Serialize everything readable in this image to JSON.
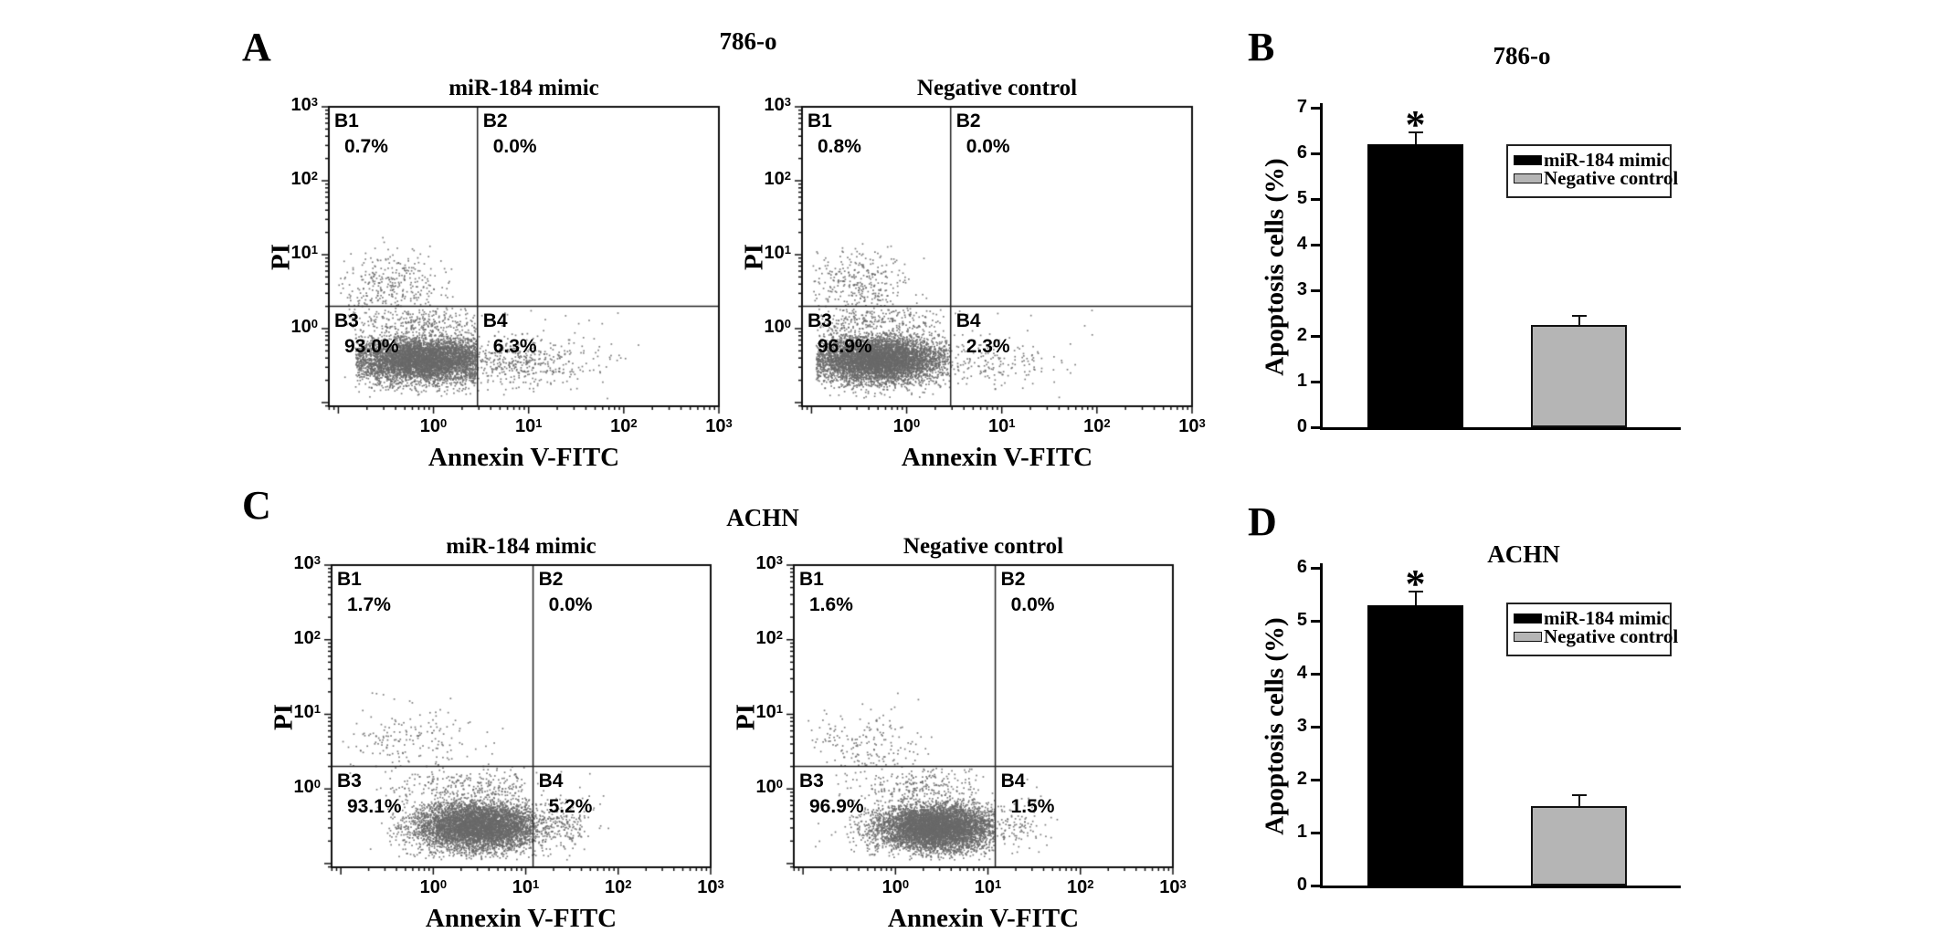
{
  "figure": {
    "panel_labels": {
      "a": "A",
      "b": "B",
      "c": "C",
      "d": "D"
    },
    "group_titles": {
      "a": "786-o",
      "c": "ACHN"
    }
  },
  "chart_data": [
    {
      "type": "scatter",
      "panel": "A",
      "cell_line": "786-o",
      "condition": "miR-184 mimic",
      "xlabel": "Annexin V-FITC",
      "ylabel": "PI",
      "xlim_log": [
        -1.1,
        3.0
      ],
      "ylim_log": [
        -1.05,
        3.0
      ],
      "x_decades": [
        0,
        1,
        2,
        3
      ],
      "y_decades": [
        0,
        1,
        2,
        3
      ],
      "gate": {
        "x": 2.9,
        "y": 2.0
      },
      "dot_color": "#696969",
      "quadrants": [
        {
          "name": "B1",
          "pct": "0.7%"
        },
        {
          "name": "B2",
          "pct": "0.0%"
        },
        {
          "name": "B3",
          "pct": "93.0%"
        },
        {
          "name": "B4",
          "pct": "6.3%"
        }
      ],
      "clusters": [
        [
          5200,
          -0.1,
          0.42,
          -0.42,
          0.16,
          -0.82,
          0.455,
          -0.93,
          -0.04
        ],
        [
          260,
          -0.15,
          0.45,
          0.08,
          0.14,
          -0.9,
          0.44,
          -0.04,
          0.28
        ],
        [
          300,
          -0.45,
          0.3,
          0.58,
          0.24,
          -1.0,
          0.35,
          0.3,
          1.25
        ],
        [
          400,
          0.8,
          0.42,
          -0.45,
          0.17,
          0.465,
          2.45,
          -0.9,
          -0.05
        ],
        [
          90,
          0.5,
          0.9,
          -0.2,
          0.5,
          -0.95,
          2.2,
          -0.95,
          0.25
        ]
      ]
    },
    {
      "type": "scatter",
      "panel": "A",
      "cell_line": "786-o",
      "condition": "Negative control",
      "xlabel": "Annexin V-FITC",
      "ylabel": "PI",
      "xlim_log": [
        -1.1,
        3.0
      ],
      "ylim_log": [
        -1.05,
        3.0
      ],
      "x_decades": [
        0,
        1,
        2,
        3
      ],
      "y_decades": [
        0,
        1,
        2,
        3
      ],
      "gate": {
        "x": 2.9,
        "y": 2.0
      },
      "dot_color": "#696969",
      "quadrants": [
        {
          "name": "B1",
          "pct": "0.8%"
        },
        {
          "name": "B2",
          "pct": "0.0%"
        },
        {
          "name": "B3",
          "pct": "96.9%"
        },
        {
          "name": "B4",
          "pct": "2.3%"
        }
      ],
      "clusters": [
        [
          5600,
          -0.3,
          0.36,
          -0.42,
          0.16,
          -0.95,
          0.455,
          -0.93,
          -0.04
        ],
        [
          260,
          -0.35,
          0.4,
          0.08,
          0.14,
          -0.95,
          0.44,
          -0.04,
          0.28
        ],
        [
          300,
          -0.5,
          0.3,
          0.58,
          0.24,
          -1.0,
          0.3,
          0.3,
          1.25
        ],
        [
          150,
          0.85,
          0.4,
          -0.45,
          0.17,
          0.465,
          2.1,
          -0.9,
          -0.05
        ],
        [
          80,
          0.3,
          0.9,
          -0.2,
          0.5,
          -0.95,
          2.0,
          -0.95,
          0.25
        ]
      ]
    },
    {
      "type": "scatter",
      "panel": "C",
      "cell_line": "ACHN",
      "condition": "miR-184 mimic",
      "xlabel": "Annexin V-FITC",
      "ylabel": "PI",
      "xlim_log": [
        -1.1,
        3.0
      ],
      "ylim_log": [
        -1.05,
        3.0
      ],
      "x_decades": [
        0,
        1,
        2,
        3
      ],
      "y_decades": [
        0,
        1,
        2,
        3
      ],
      "gate": {
        "x": 12.0,
        "y": 2.0
      },
      "dot_color": "#696969",
      "quadrants": [
        {
          "name": "B1",
          "pct": "1.7%"
        },
        {
          "name": "B2",
          "pct": "0.0%"
        },
        {
          "name": "B3",
          "pct": "93.1%"
        },
        {
          "name": "B4",
          "pct": "5.2%"
        }
      ],
      "clusters": [
        [
          5200,
          0.5,
          0.36,
          -0.5,
          0.17,
          -0.5,
          1.075,
          -0.95,
          -0.08
        ],
        [
          240,
          0.35,
          0.45,
          0.02,
          0.15,
          -0.6,
          1.0,
          -0.08,
          0.3
        ],
        [
          170,
          -0.3,
          0.38,
          0.55,
          0.26,
          -1.0,
          0.8,
          0.3,
          1.3
        ],
        [
          280,
          1.25,
          0.22,
          -0.5,
          0.17,
          1.085,
          1.95,
          -0.9,
          -0.08
        ],
        [
          90,
          0.4,
          0.8,
          -0.3,
          0.5,
          -0.9,
          1.9,
          -0.95,
          0.3
        ]
      ]
    },
    {
      "type": "scatter",
      "panel": "C",
      "cell_line": "ACHN",
      "condition": "Negative control",
      "xlabel": "Annexin V-FITC",
      "ylabel": "PI",
      "xlim_log": [
        -1.1,
        3.0
      ],
      "ylim_log": [
        -1.05,
        3.0
      ],
      "x_decades": [
        0,
        1,
        2,
        3
      ],
      "y_decades": [
        0,
        1,
        2,
        3
      ],
      "gate": {
        "x": 12.0,
        "y": 2.0
      },
      "dot_color": "#696969",
      "quadrants": [
        {
          "name": "B1",
          "pct": "1.6%"
        },
        {
          "name": "B2",
          "pct": "0.0%"
        },
        {
          "name": "B3",
          "pct": "96.9%"
        },
        {
          "name": "B4",
          "pct": "1.5%"
        }
      ],
      "clusters": [
        [
          5600,
          0.45,
          0.34,
          -0.52,
          0.16,
          -0.55,
          1.075,
          -0.95,
          -0.1
        ],
        [
          220,
          0.3,
          0.45,
          0.0,
          0.15,
          -0.65,
          0.9,
          -0.1,
          0.3
        ],
        [
          170,
          -0.35,
          0.38,
          0.55,
          0.26,
          -1.0,
          0.7,
          0.3,
          1.3
        ],
        [
          100,
          1.25,
          0.2,
          -0.5,
          0.16,
          1.085,
          1.8,
          -0.9,
          -0.1
        ],
        [
          80,
          0.3,
          0.8,
          -0.3,
          0.5,
          -0.9,
          1.7,
          -0.95,
          0.3
        ]
      ]
    },
    {
      "type": "bar",
      "panel": "B",
      "title": "786-o",
      "ylabel": "Apoptosis cells (%)",
      "ylim": [
        0,
        7
      ],
      "ytick_step": 1,
      "significance": "*",
      "significance_on": "miR-184 mimic",
      "series": [
        {
          "name": "miR-184 mimic",
          "value": 6.2,
          "error": 0.26,
          "color": "#000000"
        },
        {
          "name": "Negative control",
          "value": 2.25,
          "error": 0.2,
          "color": "#b5b5b5"
        }
      ]
    },
    {
      "type": "bar",
      "panel": "D",
      "title": "ACHN",
      "ylabel": "Apoptosis cells (%)",
      "ylim": [
        0,
        6
      ],
      "ytick_step": 1,
      "significance": "*",
      "significance_on": "miR-184 mimic",
      "series": [
        {
          "name": "miR-184 mimic",
          "value": 5.3,
          "error": 0.25,
          "color": "#000000"
        },
        {
          "name": "Negative control",
          "value": 1.5,
          "error": 0.2,
          "color": "#b5b5b5"
        }
      ]
    }
  ]
}
